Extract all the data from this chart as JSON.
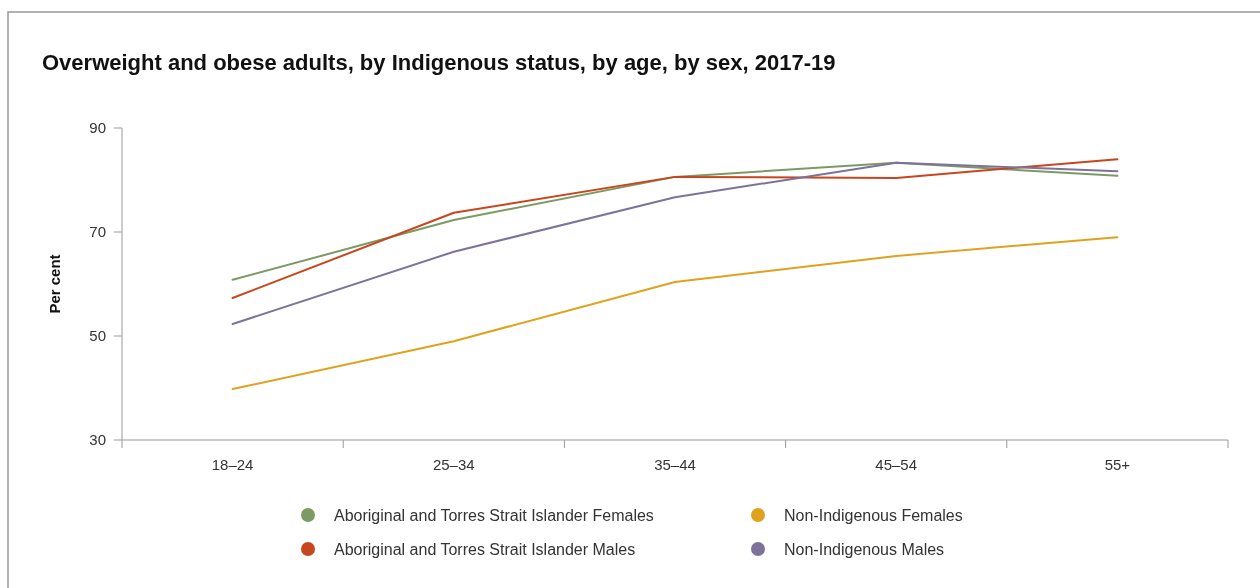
{
  "chart_data": {
    "type": "line",
    "title": "Overweight and obese adults, by Indigenous status, by age, by sex, 2017-19",
    "ylabel": "Per cent",
    "categories": [
      "18–24",
      "25–34",
      "35–44",
      "45–54",
      "55+"
    ],
    "series": [
      {
        "name": "Aboriginal and Torres Strait Islander Females",
        "color": "#7c9a64",
        "values": [
          60.8,
          72.3,
          80.6,
          83.3,
          80.8
        ]
      },
      {
        "name": "Aboriginal and Torres Strait Islander Males",
        "color": "#c8461e",
        "values": [
          57.3,
          73.7,
          80.6,
          80.4,
          84.0
        ]
      },
      {
        "name": "Non-Indigenous Females",
        "color": "#dfa21d",
        "values": [
          39.8,
          49.0,
          60.4,
          65.4,
          69.0
        ]
      },
      {
        "name": "Non-Indigenous Males",
        "color": "#7d7299",
        "values": [
          52.3,
          66.2,
          76.7,
          83.3,
          81.7
        ]
      }
    ],
    "ylim": [
      30,
      90
    ],
    "yticks": [
      30,
      50,
      70,
      90
    ],
    "grid": false,
    "legend": "bottom",
    "marker": "none",
    "line_style": "solid"
  }
}
